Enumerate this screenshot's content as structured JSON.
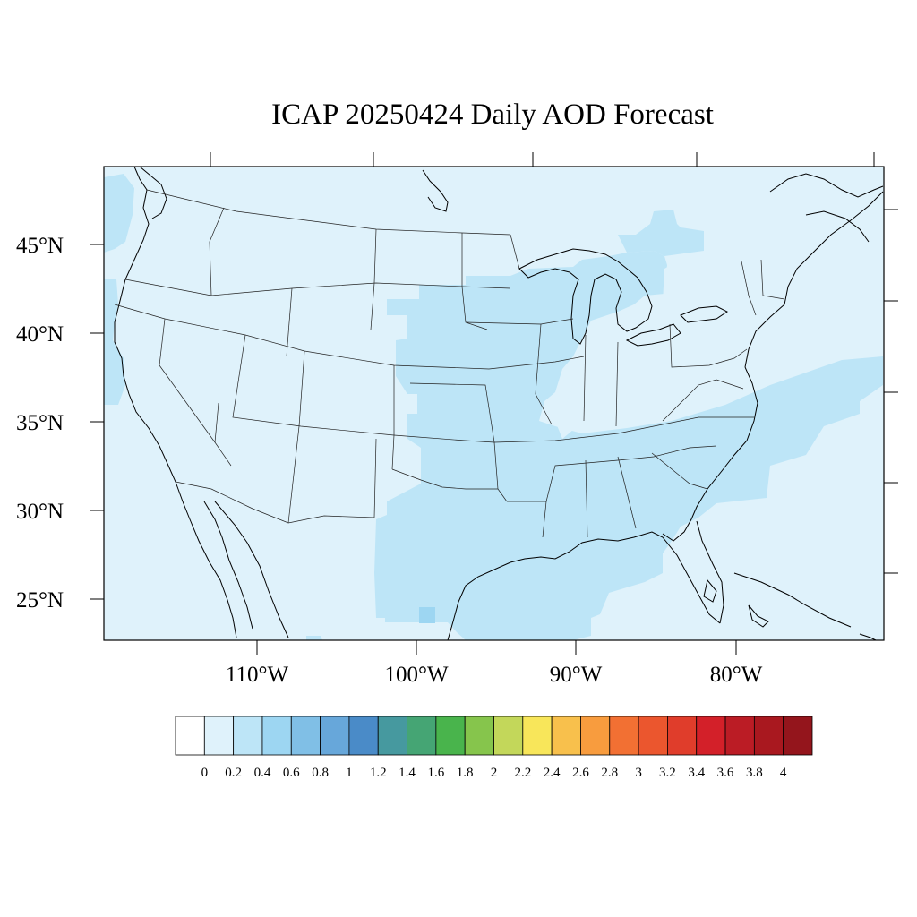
{
  "title": "ICAP 20250424 Daily AOD Forecast",
  "map": {
    "lat_labels": [
      "45°N",
      "40°N",
      "35°N",
      "30°N",
      "25°N"
    ],
    "lon_labels": [
      "110°W",
      "100°W",
      "90°W",
      "80°W"
    ],
    "background_color": "#dff2fb"
  },
  "colorbar": {
    "colors": [
      "#ffffff",
      "#dff2fb",
      "#bde5f7",
      "#9dd6f2",
      "#80bfe6",
      "#67a7da",
      "#4a8bc8",
      "#46999f",
      "#45a574",
      "#49b44c",
      "#86c54c",
      "#c3d75a",
      "#f8e65a",
      "#f8c04c",
      "#f89c3e",
      "#f27033",
      "#eb562e",
      "#e03d2b",
      "#d32029",
      "#bb1c25",
      "#a9181f",
      "#94151c"
    ],
    "labels": [
      "0",
      "0.2",
      "0.4",
      "0.6",
      "0.8",
      "1",
      "1.2",
      "1.4",
      "1.6",
      "1.8",
      "2",
      "2.2",
      "2.4",
      "2.6",
      "2.8",
      "3",
      "3.2",
      "3.4",
      "3.6",
      "3.8",
      "4"
    ]
  }
}
